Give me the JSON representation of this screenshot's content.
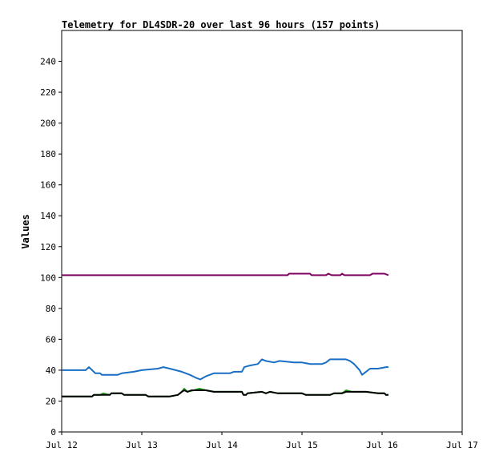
{
  "chart_data": {
    "type": "line",
    "title": "Telemetry for DL4SDR-20 over last 96 hours (157 points)",
    "xlabel": "",
    "ylabel": "Values",
    "x_tick_labels": [
      "Jul 12",
      "Jul 13",
      "Jul 14",
      "Jul 15",
      "Jul 16",
      "Jul 17"
    ],
    "x_tick_values": [
      0,
      1,
      2,
      3,
      4,
      5
    ],
    "x_unit": "days since Jul 12 00:00",
    "xlim": [
      0,
      5
    ],
    "y_tick_values": [
      0,
      20,
      40,
      60,
      80,
      100,
      120,
      140,
      160,
      180,
      200,
      220,
      240
    ],
    "ylim": [
      0,
      260
    ],
    "grid": false,
    "legend": "none",
    "series": [
      {
        "color": "#800060",
        "points": [
          [
            0.0,
            101.5
          ],
          [
            0.5,
            101.5
          ],
          [
            1.0,
            101.5
          ],
          [
            1.5,
            101.5
          ],
          [
            2.0,
            101.5
          ],
          [
            2.5,
            101.5
          ],
          [
            2.82,
            101.5
          ],
          [
            2.84,
            102.5
          ],
          [
            3.1,
            102.5
          ],
          [
            3.12,
            101.5
          ],
          [
            3.3,
            101.5
          ],
          [
            3.33,
            102.5
          ],
          [
            3.37,
            101.5
          ],
          [
            3.48,
            101.5
          ],
          [
            3.5,
            102.5
          ],
          [
            3.53,
            101.5
          ],
          [
            3.85,
            101.5
          ],
          [
            3.88,
            102.5
          ],
          [
            4.03,
            102.5
          ],
          [
            4.08,
            101.5
          ]
        ]
      },
      {
        "color": "#1a6fc4",
        "points": [
          [
            0.0,
            40
          ],
          [
            0.3,
            40
          ],
          [
            0.34,
            42
          ],
          [
            0.38,
            40
          ],
          [
            0.42,
            38
          ],
          [
            0.48,
            38
          ],
          [
            0.5,
            37
          ],
          [
            0.7,
            37
          ],
          [
            0.75,
            38
          ],
          [
            0.9,
            39
          ],
          [
            1.0,
            40
          ],
          [
            1.2,
            41
          ],
          [
            1.27,
            42
          ],
          [
            1.35,
            41
          ],
          [
            1.5,
            39
          ],
          [
            1.6,
            37
          ],
          [
            1.68,
            35
          ],
          [
            1.73,
            34
          ],
          [
            1.8,
            36
          ],
          [
            1.9,
            38
          ],
          [
            2.1,
            38
          ],
          [
            2.15,
            39
          ],
          [
            2.25,
            39
          ],
          [
            2.28,
            42
          ],
          [
            2.35,
            43
          ],
          [
            2.45,
            44
          ],
          [
            2.5,
            47
          ],
          [
            2.55,
            46
          ],
          [
            2.65,
            45
          ],
          [
            2.72,
            46
          ],
          [
            2.9,
            45
          ],
          [
            3.0,
            45
          ],
          [
            3.1,
            44
          ],
          [
            3.25,
            44
          ],
          [
            3.3,
            45
          ],
          [
            3.35,
            47
          ],
          [
            3.45,
            47
          ],
          [
            3.55,
            47
          ],
          [
            3.6,
            46
          ],
          [
            3.65,
            44
          ],
          [
            3.72,
            40
          ],
          [
            3.75,
            37
          ],
          [
            3.8,
            39
          ],
          [
            3.85,
            41
          ],
          [
            3.95,
            41
          ],
          [
            4.05,
            42
          ],
          [
            4.08,
            42
          ]
        ]
      },
      {
        "color": "#22a022",
        "points": [
          [
            0.0,
            23
          ],
          [
            0.38,
            23
          ],
          [
            0.4,
            24
          ],
          [
            0.48,
            24
          ],
          [
            0.52,
            25
          ],
          [
            0.6,
            24
          ],
          [
            0.62,
            25
          ],
          [
            0.75,
            25
          ],
          [
            0.78,
            24
          ],
          [
            1.05,
            24
          ],
          [
            1.08,
            23
          ],
          [
            1.35,
            23
          ],
          [
            1.45,
            24
          ],
          [
            1.5,
            26
          ],
          [
            1.53,
            28
          ],
          [
            1.57,
            26
          ],
          [
            1.65,
            27
          ],
          [
            1.72,
            28
          ],
          [
            1.8,
            27
          ],
          [
            1.9,
            26
          ],
          [
            2.25,
            26
          ],
          [
            2.27,
            24
          ],
          [
            2.3,
            24
          ],
          [
            2.32,
            25
          ],
          [
            2.5,
            26
          ],
          [
            2.55,
            25
          ],
          [
            2.6,
            26
          ],
          [
            2.7,
            25
          ],
          [
            3.0,
            25
          ],
          [
            3.05,
            24
          ],
          [
            3.35,
            24
          ],
          [
            3.4,
            25
          ],
          [
            3.5,
            25
          ],
          [
            3.55,
            27
          ],
          [
            3.62,
            26
          ],
          [
            3.8,
            26
          ],
          [
            3.95,
            25
          ],
          [
            4.03,
            25
          ],
          [
            4.05,
            24
          ],
          [
            4.08,
            24
          ]
        ]
      },
      {
        "color": "#000000",
        "points": [
          [
            0.0,
            23
          ],
          [
            0.38,
            23
          ],
          [
            0.4,
            24
          ],
          [
            0.6,
            24
          ],
          [
            0.62,
            25
          ],
          [
            0.75,
            25
          ],
          [
            0.78,
            24
          ],
          [
            1.05,
            24
          ],
          [
            1.08,
            23
          ],
          [
            1.35,
            23
          ],
          [
            1.45,
            24
          ],
          [
            1.5,
            26
          ],
          [
            1.53,
            27
          ],
          [
            1.57,
            26
          ],
          [
            1.62,
            27
          ],
          [
            1.8,
            27
          ],
          [
            1.9,
            26
          ],
          [
            2.25,
            26
          ],
          [
            2.27,
            24
          ],
          [
            2.3,
            24
          ],
          [
            2.32,
            25
          ],
          [
            2.5,
            26
          ],
          [
            2.55,
            25
          ],
          [
            2.6,
            26
          ],
          [
            2.7,
            25
          ],
          [
            3.0,
            25
          ],
          [
            3.05,
            24
          ],
          [
            3.35,
            24
          ],
          [
            3.4,
            25
          ],
          [
            3.5,
            25
          ],
          [
            3.55,
            26
          ],
          [
            3.62,
            26
          ],
          [
            3.8,
            26
          ],
          [
            3.95,
            25
          ],
          [
            4.03,
            25
          ],
          [
            4.05,
            24
          ],
          [
            4.08,
            24
          ]
        ]
      }
    ]
  }
}
